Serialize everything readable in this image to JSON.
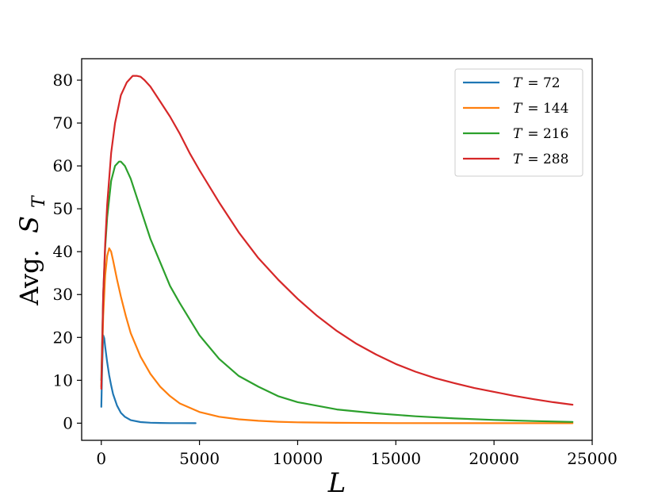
{
  "chart_data": {
    "type": "line",
    "xlabel": "L",
    "ylabel_prefix": "Avg.",
    "ylabel_symbol": "S",
    "ylabel_subscript": "T",
    "xlim": [
      -1000,
      25000
    ],
    "ylim": [
      -4,
      85
    ],
    "xticks": [
      0,
      5000,
      10000,
      15000,
      20000,
      25000
    ],
    "yticks": [
      0,
      10,
      20,
      30,
      40,
      50,
      60,
      70,
      80
    ],
    "grid": false,
    "legend_position": "top-right",
    "series": [
      {
        "name": "T = 72",
        "legend_var": "T",
        "legend_value": "= 72",
        "color": "#1f77b4",
        "x": [
          0,
          50,
          100,
          150,
          200,
          300,
          400,
          500,
          600,
          800,
          1000,
          1200,
          1500,
          2000,
          2500,
          3000,
          3500,
          4000,
          4800
        ],
        "y": [
          3.8,
          14,
          20.5,
          19.8,
          17.8,
          14.2,
          11.2,
          8.8,
          6.8,
          4.1,
          2.4,
          1.5,
          0.7,
          0.25,
          0.1,
          0.05,
          0.02,
          0.01,
          0
        ]
      },
      {
        "name": "T = 144",
        "legend_var": "T",
        "legend_value": "= 144",
        "color": "#ff7f0e",
        "x": [
          0,
          100,
          200,
          300,
          400,
          500,
          600,
          800,
          1000,
          1250,
          1500,
          2000,
          2500,
          3000,
          3500,
          4000,
          5000,
          6000,
          7000,
          8000,
          9000,
          10000,
          12000,
          15000,
          20000,
          24000
        ],
        "y": [
          8.5,
          25,
          34.5,
          39,
          40.8,
          40,
          38,
          33.5,
          29.5,
          25,
          21,
          15.5,
          11.5,
          8.5,
          6.3,
          4.6,
          2.6,
          1.5,
          0.9,
          0.55,
          0.33,
          0.2,
          0.08,
          0.02,
          0.005,
          0
        ]
      },
      {
        "name": "T = 216",
        "legend_var": "T",
        "legend_value": "= 216",
        "color": "#2ca02c",
        "x": [
          0,
          100,
          200,
          300,
          500,
          700,
          900,
          1000,
          1200,
          1500,
          2000,
          2500,
          3000,
          3500,
          4000,
          5000,
          6000,
          7000,
          8000,
          9000,
          10000,
          12000,
          14000,
          16000,
          18000,
          20000,
          22000,
          24000
        ],
        "y": [
          10,
          30,
          41,
          48,
          56.5,
          60,
          61,
          61,
          60,
          57,
          50,
          43,
          37.5,
          32,
          28,
          20.5,
          15,
          11,
          8.5,
          6.3,
          4.9,
          3.2,
          2.3,
          1.6,
          1.1,
          0.75,
          0.5,
          0.3
        ]
      },
      {
        "name": "T = 288",
        "legend_var": "T",
        "legend_value": "= 288",
        "color": "#d62728",
        "x": [
          0,
          100,
          200,
          300,
          500,
          700,
          1000,
          1300,
          1600,
          1800,
          2000,
          2200,
          2500,
          3000,
          3500,
          4000,
          4500,
          5000,
          6000,
          7000,
          8000,
          9000,
          10000,
          11000,
          12000,
          13000,
          14000,
          15000,
          16000,
          17000,
          18000,
          19000,
          20000,
          21000,
          22000,
          23000,
          24000
        ],
        "y": [
          8,
          30,
          42,
          51,
          63,
          70,
          76.5,
          79.5,
          81,
          81,
          80.8,
          80,
          78.5,
          75,
          71.5,
          67.5,
          63,
          59,
          51.5,
          44.5,
          38.5,
          33.5,
          29,
          25,
          21.5,
          18.5,
          16,
          13.8,
          12,
          10.5,
          9.3,
          8.2,
          7.3,
          6.4,
          5.6,
          4.9,
          4.3
        ]
      }
    ]
  }
}
